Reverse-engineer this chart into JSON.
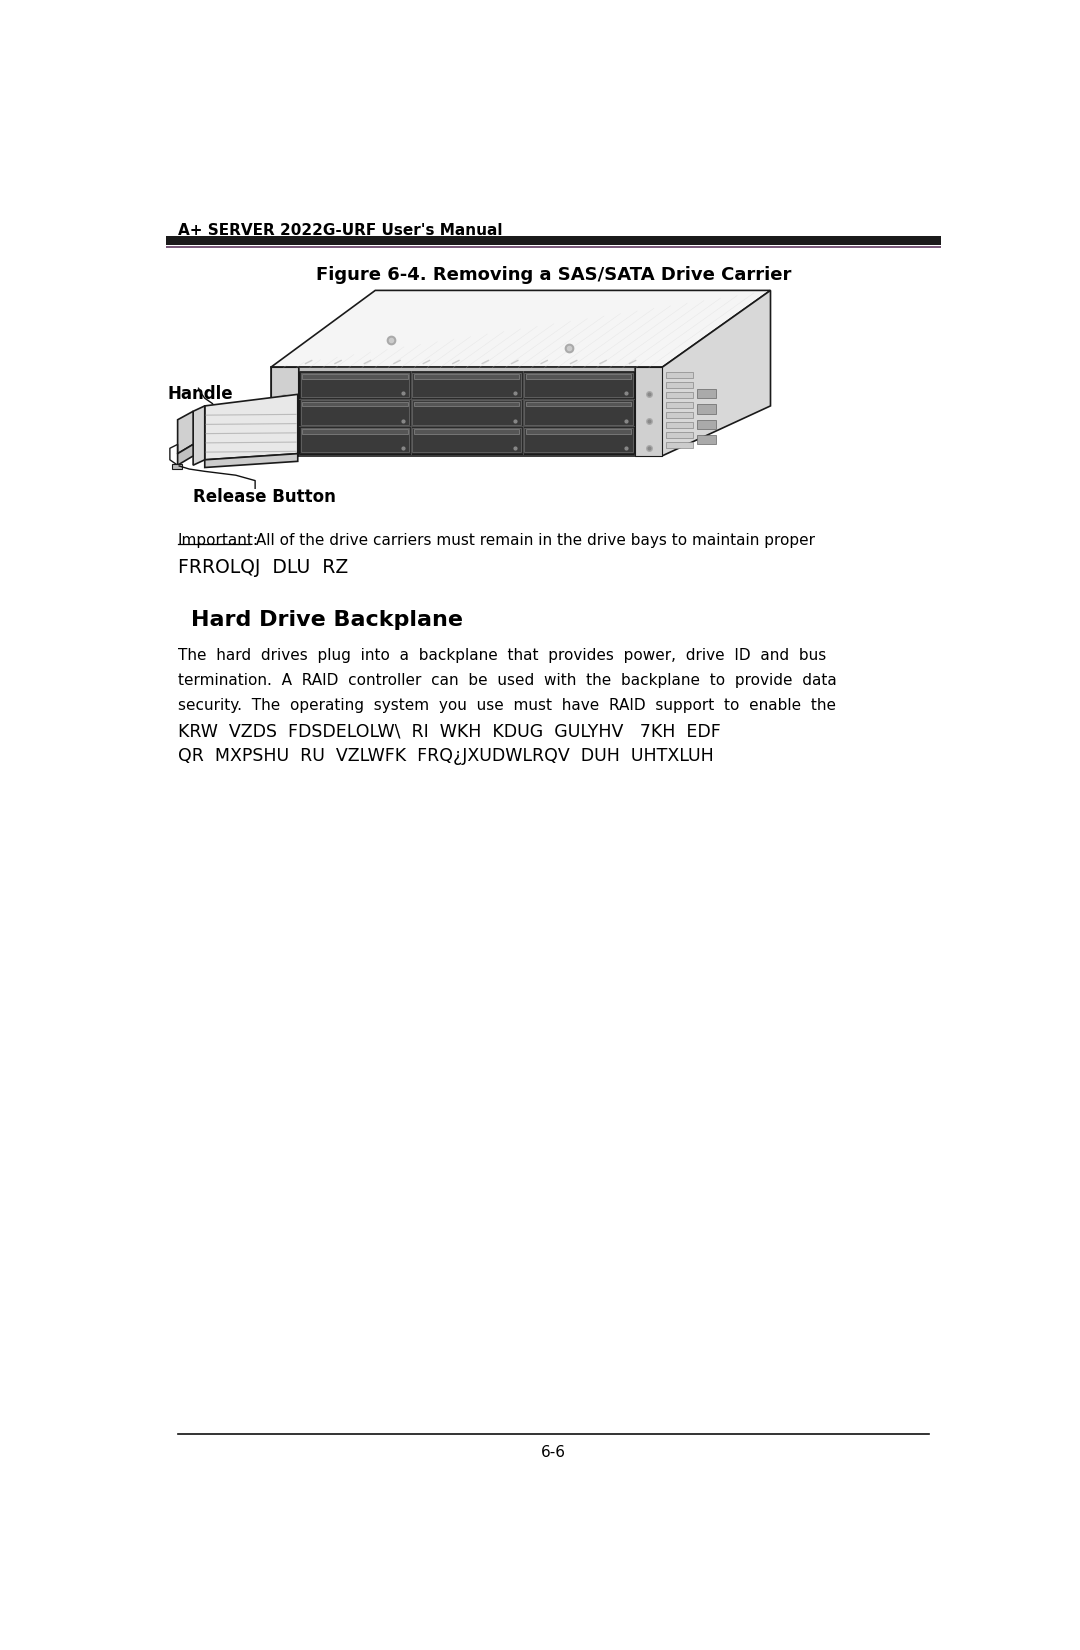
{
  "header_text": "A+ SERVER 2022G-URF User's Manual",
  "figure_title": "Figure 6-4. Removing a SAS/SATA Drive Carrier",
  "label_handle": "Handle",
  "label_release": "Release Button",
  "important_label": "Important:",
  "important_text": " All of the drive carriers must remain in the drive bays to maintain proper",
  "important_line2": "FRROLQJ  DLU  RZ",
  "section_title": "Hard Drive Backplane",
  "body_text_line1": "The  hard  drives  plug  into  a  backplane  that  provides  power,  drive  ID  and  bus",
  "body_text_line2": "termination.  A  RAID  controller  can  be  used  with  the  backplane  to  provide  data",
  "body_text_line3": "security.  The  operating  system  you  use  must  have  RAID  support  to  enable  the",
  "body_text_line4": "KRW  VZDS  FDSDELOLW\\  RI  WKH  KDUG  GULYHV   7KH  EDF",
  "body_text_line5": "QR  MXPSHU  RU  VZLWFK  FRQ¿JXUDWLRQV  DUH  UHTXLUH",
  "footer_text": "6-6",
  "bg_color": "#ffffff",
  "text_color": "#000000",
  "header_bar_color": "#1a1a1a",
  "header_bar_color2": "#7a5a7a"
}
